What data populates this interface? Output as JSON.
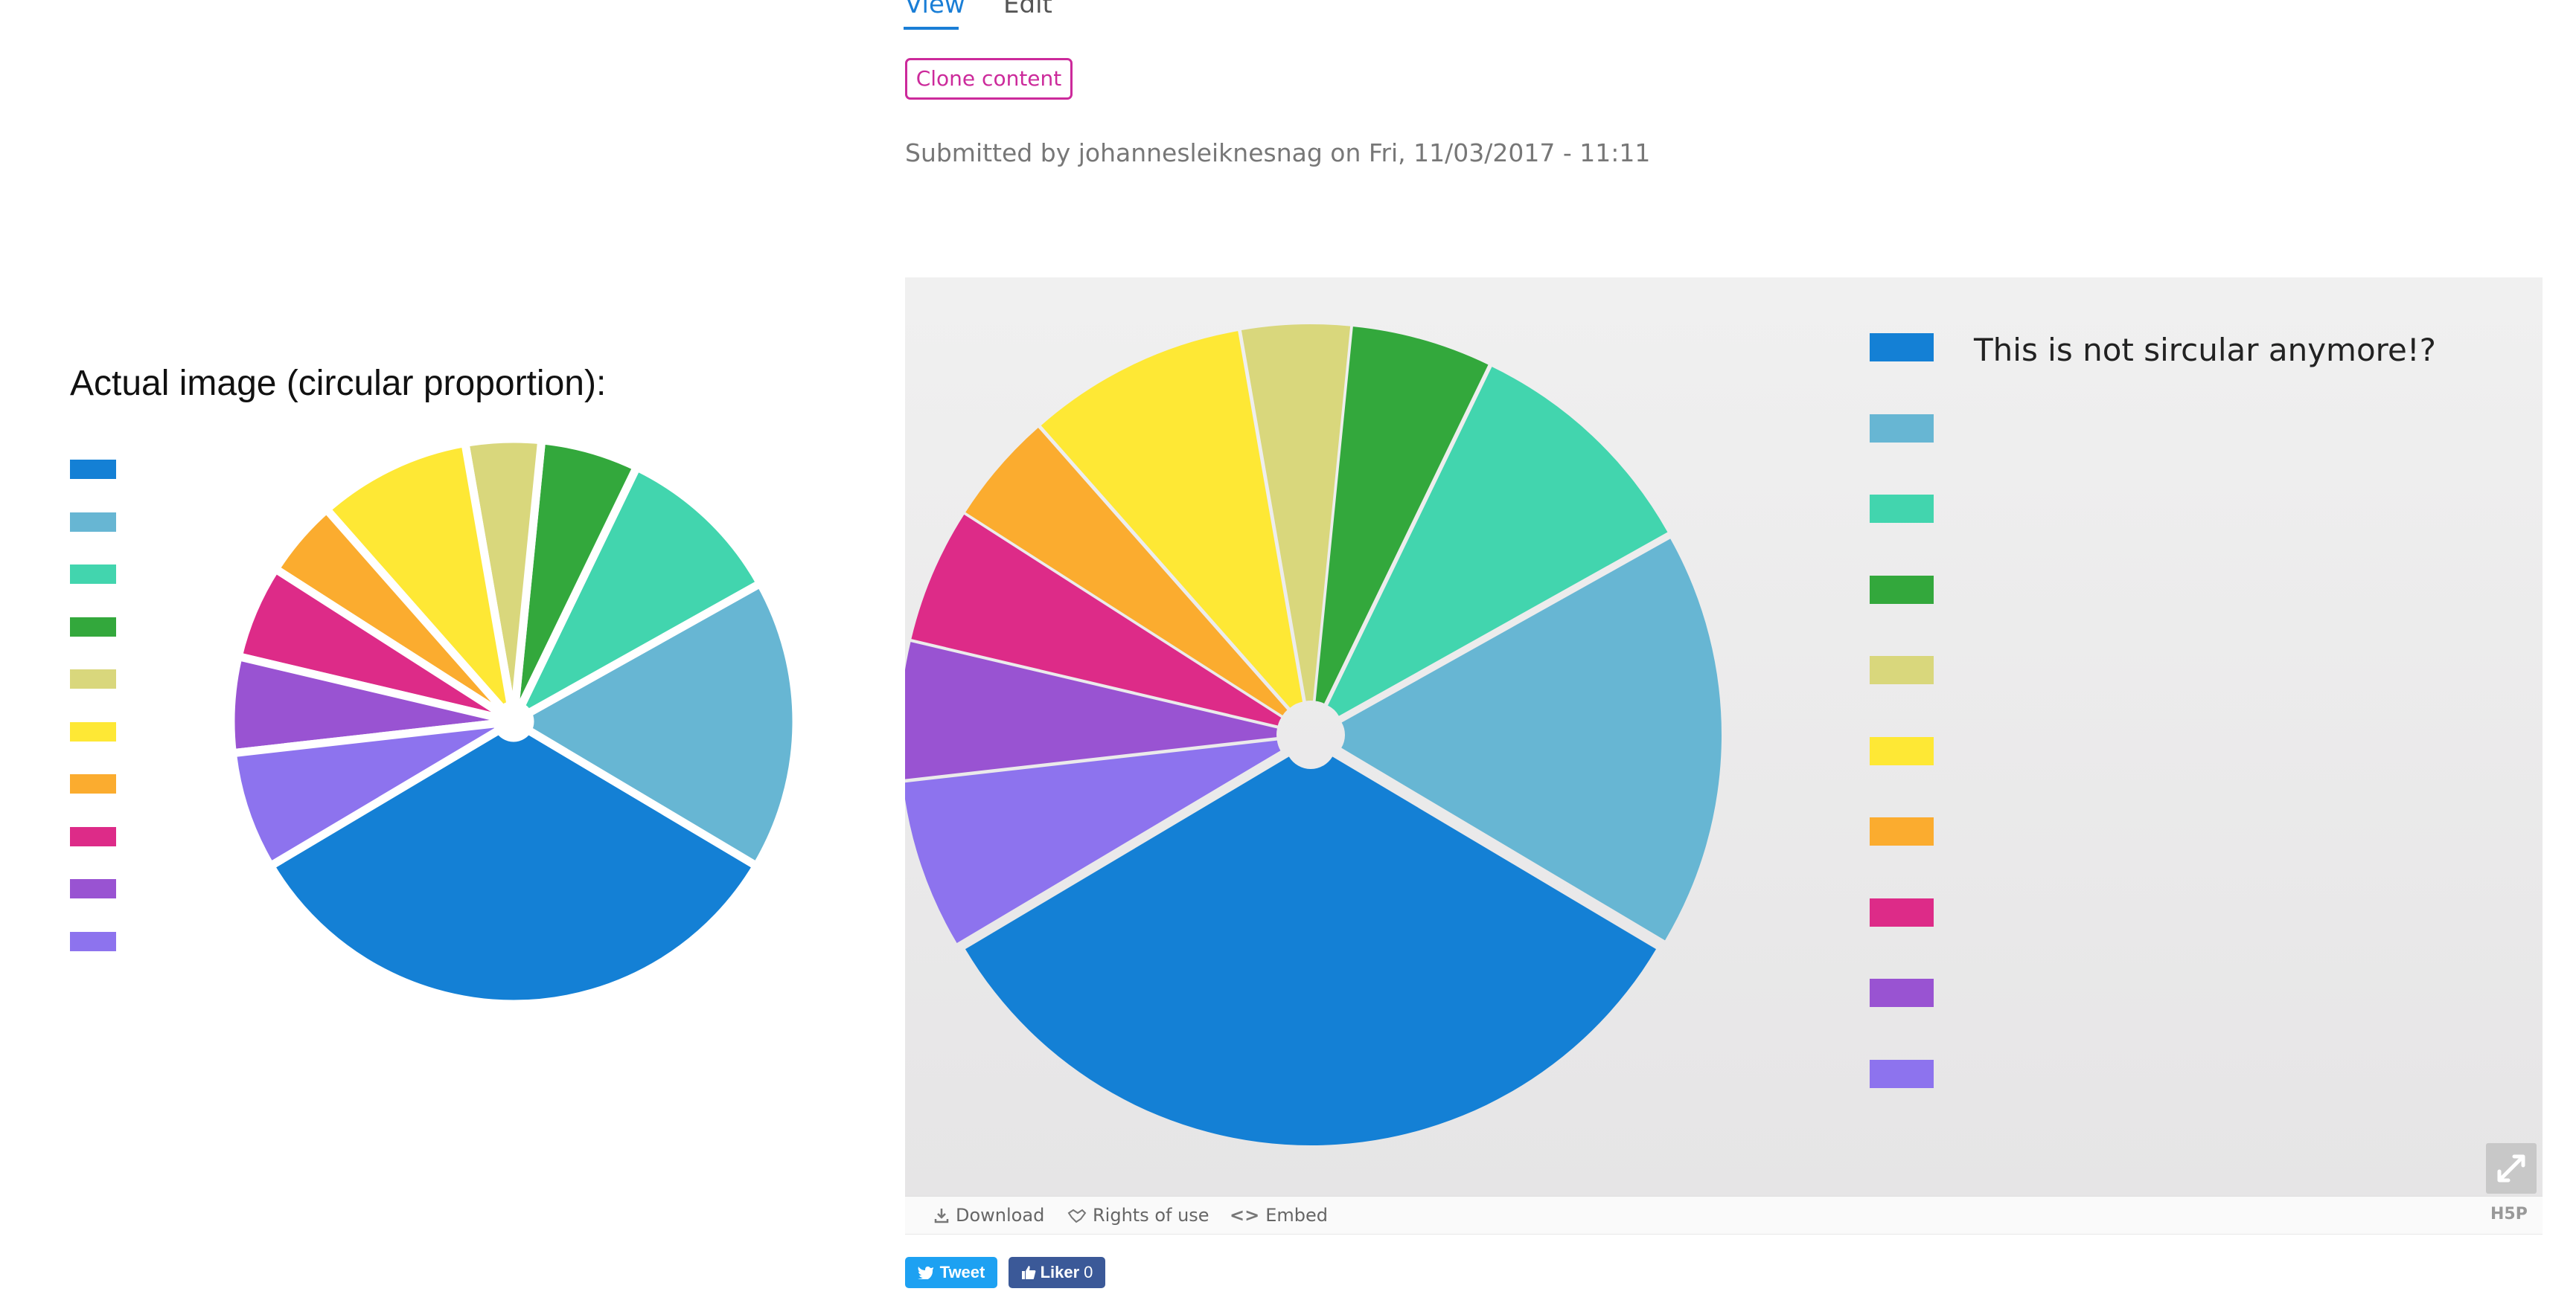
{
  "tabs": {
    "view": "View",
    "edit": "Edit"
  },
  "clone_button": "Clone content",
  "submitted": "Submitted by johannesleiknesnag on Fri, 11/03/2017 - 11:11",
  "left_panel": {
    "title": "Actual image (circular proportion):"
  },
  "h5p": {
    "legend_label": "This is not sircular anymore!?",
    "footer": {
      "download": "Download",
      "rights": "Rights of use",
      "embed": "Embed",
      "logo": "H5P"
    }
  },
  "social": {
    "tweet": "Tweet",
    "liker": "Liker",
    "liker_count": "0"
  },
  "colors": {
    "accent": "#1a7ed6",
    "clone": "#cc2a9b",
    "tweet": "#1da1f2",
    "facebook": "#3b5998"
  },
  "chart_data": [
    {
      "type": "pie",
      "title": "",
      "legend_placement": "left",
      "slices": [
        {
          "label": "",
          "value": 31.2,
          "color": "#1480d5"
        },
        {
          "label": "",
          "value": 15.8,
          "color": "#67b6d3"
        },
        {
          "label": "",
          "value": 9.2,
          "color": "#42d5ae"
        },
        {
          "label": "",
          "value": 5.3,
          "color": "#33a83c"
        },
        {
          "label": "",
          "value": 4.1,
          "color": "#d9d77c"
        },
        {
          "label": "",
          "value": 8.3,
          "color": "#fee835"
        },
        {
          "label": "",
          "value": 4.2,
          "color": "#fbac2f"
        },
        {
          "label": "",
          "value": 5.1,
          "color": "#dd2b88"
        },
        {
          "label": "",
          "value": 5.2,
          "color": "#9953d2"
        },
        {
          "label": "",
          "value": 6.4,
          "color": "#8d73ee"
        }
      ]
    },
    {
      "type": "pie",
      "title": "",
      "legend_placement": "right",
      "slices": [
        {
          "label": "This is not sircular anymore!?",
          "value": 31.2,
          "color": "#1480d5"
        },
        {
          "label": "",
          "value": 15.8,
          "color": "#67b6d3"
        },
        {
          "label": "",
          "value": 9.2,
          "color": "#42d5ae"
        },
        {
          "label": "",
          "value": 5.3,
          "color": "#33a83c"
        },
        {
          "label": "",
          "value": 4.1,
          "color": "#d9d77c"
        },
        {
          "label": "",
          "value": 8.3,
          "color": "#fee835"
        },
        {
          "label": "",
          "value": 4.2,
          "color": "#fbac2f"
        },
        {
          "label": "",
          "value": 5.1,
          "color": "#dd2b88"
        },
        {
          "label": "",
          "value": 5.2,
          "color": "#9953d2"
        },
        {
          "label": "",
          "value": 6.4,
          "color": "#8d73ee"
        }
      ]
    }
  ]
}
